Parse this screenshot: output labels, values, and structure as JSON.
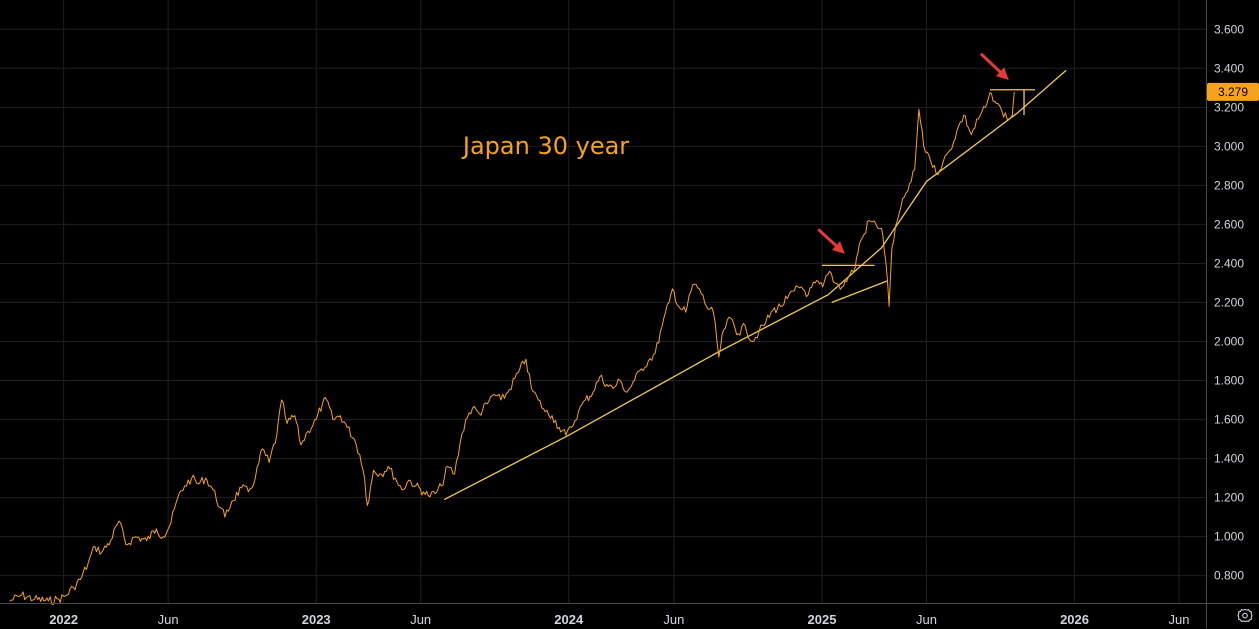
{
  "chart_data": {
    "type": "line",
    "title": "Japan 30 year",
    "colors": {
      "price": "#f7a21b",
      "trendline": "#f2c94c",
      "arrow": "#e53935",
      "grid": "#1f1f1f",
      "axis_border": "#4a4a4a",
      "background": "#000000",
      "price_label_bg": "#f7a21b"
    },
    "ylim": [
      0.66,
      3.75
    ],
    "y_ticks": [
      "0.800",
      "1.000",
      "1.200",
      "1.400",
      "1.600",
      "1.800",
      "2.000",
      "2.200",
      "2.400",
      "2.600",
      "2.800",
      "3.000",
      "3.200",
      "3.400",
      "3.600"
    ],
    "y_tick_values": [
      0.8,
      1.0,
      1.2,
      1.4,
      1.6,
      1.8,
      2.0,
      2.2,
      2.4,
      2.6,
      2.8,
      3.0,
      3.2,
      3.4,
      3.6
    ],
    "xlim": [
      "2021-10-01",
      "2026-07-10"
    ],
    "x_ticks": [
      {
        "date": "2022-01-01",
        "label": "2022",
        "bold": true
      },
      {
        "date": "2022-06-01",
        "label": "Jun",
        "bold": false
      },
      {
        "date": "2023-01-01",
        "label": "2023",
        "bold": true
      },
      {
        "date": "2023-06-01",
        "label": "Jun",
        "bold": false
      },
      {
        "date": "2024-01-01",
        "label": "2024",
        "bold": true
      },
      {
        "date": "2024-06-01",
        "label": "Jun",
        "bold": false
      },
      {
        "date": "2025-01-01",
        "label": "2025",
        "bold": true
      },
      {
        "date": "2025-06-01",
        "label": "Jun",
        "bold": false
      },
      {
        "date": "2026-01-01",
        "label": "2026",
        "bold": true
      },
      {
        "date": "2026-06-01",
        "label": "Jun",
        "bold": false
      }
    ],
    "current_price_label": "3.279",
    "current_price_value": 3.279,
    "series": [
      {
        "name": "Japan 30Y yield",
        "points": [
          [
            "2021-10-15",
            0.67
          ],
          [
            "2021-11-01",
            0.7
          ],
          [
            "2021-11-20",
            0.68
          ],
          [
            "2021-12-10",
            0.67
          ],
          [
            "2021-12-25",
            0.68
          ],
          [
            "2022-01-05",
            0.7
          ],
          [
            "2022-01-15",
            0.74
          ],
          [
            "2022-01-25",
            0.78
          ],
          [
            "2022-02-05",
            0.86
          ],
          [
            "2022-02-15",
            0.95
          ],
          [
            "2022-02-25",
            0.92
          ],
          [
            "2022-03-10",
            0.98
          ],
          [
            "2022-03-22",
            1.08
          ],
          [
            "2022-04-01",
            0.96
          ],
          [
            "2022-04-15",
            1.0
          ],
          [
            "2022-05-01",
            0.98
          ],
          [
            "2022-05-15",
            1.04
          ],
          [
            "2022-05-25",
            1.0
          ],
          [
            "2022-06-05",
            1.07
          ],
          [
            "2022-06-15",
            1.2
          ],
          [
            "2022-06-25",
            1.26
          ],
          [
            "2022-07-05",
            1.3
          ],
          [
            "2022-07-15",
            1.27
          ],
          [
            "2022-07-25",
            1.3
          ],
          [
            "2022-08-05",
            1.24
          ],
          [
            "2022-08-15",
            1.15
          ],
          [
            "2022-08-22",
            1.1
          ],
          [
            "2022-09-01",
            1.18
          ],
          [
            "2022-09-15",
            1.25
          ],
          [
            "2022-09-25",
            1.23
          ],
          [
            "2022-10-05",
            1.3
          ],
          [
            "2022-10-15",
            1.45
          ],
          [
            "2022-10-25",
            1.38
          ],
          [
            "2022-11-05",
            1.52
          ],
          [
            "2022-11-12",
            1.7
          ],
          [
            "2022-11-20",
            1.58
          ],
          [
            "2022-12-01",
            1.62
          ],
          [
            "2022-12-10",
            1.47
          ],
          [
            "2022-12-20",
            1.54
          ],
          [
            "2023-01-01",
            1.6
          ],
          [
            "2023-01-10",
            1.68
          ],
          [
            "2023-01-16",
            1.7
          ],
          [
            "2023-01-25",
            1.6
          ],
          [
            "2023-02-05",
            1.62
          ],
          [
            "2023-02-15",
            1.56
          ],
          [
            "2023-02-25",
            1.5
          ],
          [
            "2023-03-05",
            1.42
          ],
          [
            "2023-03-12",
            1.3
          ],
          [
            "2023-03-16",
            1.16
          ],
          [
            "2023-03-25",
            1.34
          ],
          [
            "2023-04-05",
            1.32
          ],
          [
            "2023-04-15",
            1.36
          ],
          [
            "2023-04-25",
            1.3
          ],
          [
            "2023-05-05",
            1.24
          ],
          [
            "2023-05-15",
            1.29
          ],
          [
            "2023-05-25",
            1.26
          ],
          [
            "2023-06-05",
            1.23
          ],
          [
            "2023-06-12",
            1.21
          ],
          [
            "2023-06-22",
            1.22
          ],
          [
            "2023-07-01",
            1.26
          ],
          [
            "2023-07-10",
            1.36
          ],
          [
            "2023-07-20",
            1.32
          ],
          [
            "2023-07-28",
            1.48
          ],
          [
            "2023-08-05",
            1.6
          ],
          [
            "2023-08-15",
            1.66
          ],
          [
            "2023-08-25",
            1.63
          ],
          [
            "2023-09-05",
            1.68
          ],
          [
            "2023-09-15",
            1.73
          ],
          [
            "2023-09-25",
            1.7
          ],
          [
            "2023-10-05",
            1.74
          ],
          [
            "2023-10-20",
            1.84
          ],
          [
            "2023-10-31",
            1.91
          ],
          [
            "2023-11-08",
            1.76
          ],
          [
            "2023-11-18",
            1.7
          ],
          [
            "2023-11-28",
            1.64
          ],
          [
            "2023-12-08",
            1.62
          ],
          [
            "2023-12-18",
            1.56
          ],
          [
            "2023-12-28",
            1.52
          ],
          [
            "2024-01-05",
            1.56
          ],
          [
            "2024-01-15",
            1.64
          ],
          [
            "2024-01-25",
            1.7
          ],
          [
            "2024-02-05",
            1.74
          ],
          [
            "2024-02-15",
            1.82
          ],
          [
            "2024-02-25",
            1.78
          ],
          [
            "2024-03-05",
            1.76
          ],
          [
            "2024-03-15",
            1.8
          ],
          [
            "2024-03-25",
            1.74
          ],
          [
            "2024-04-05",
            1.8
          ],
          [
            "2024-04-15",
            1.86
          ],
          [
            "2024-04-25",
            1.9
          ],
          [
            "2024-05-05",
            1.94
          ],
          [
            "2024-05-15",
            2.08
          ],
          [
            "2024-05-25",
            2.2
          ],
          [
            "2024-05-30",
            2.27
          ],
          [
            "2024-06-08",
            2.18
          ],
          [
            "2024-06-18",
            2.15
          ],
          [
            "2024-06-28",
            2.29
          ],
          [
            "2024-07-08",
            2.27
          ],
          [
            "2024-07-18",
            2.18
          ],
          [
            "2024-07-28",
            2.15
          ],
          [
            "2024-08-05",
            1.92
          ],
          [
            "2024-08-12",
            2.06
          ],
          [
            "2024-08-22",
            2.12
          ],
          [
            "2024-09-02",
            2.04
          ],
          [
            "2024-09-12",
            2.08
          ],
          [
            "2024-09-22",
            2.0
          ],
          [
            "2024-10-02",
            2.05
          ],
          [
            "2024-10-12",
            2.1
          ],
          [
            "2024-10-22",
            2.16
          ],
          [
            "2024-11-02",
            2.18
          ],
          [
            "2024-11-12",
            2.22
          ],
          [
            "2024-11-22",
            2.26
          ],
          [
            "2024-12-02",
            2.28
          ],
          [
            "2024-12-12",
            2.24
          ],
          [
            "2024-12-22",
            2.3
          ],
          [
            "2025-01-02",
            2.28
          ],
          [
            "2025-01-12",
            2.36
          ],
          [
            "2025-01-20",
            2.3
          ],
          [
            "2025-01-30",
            2.28
          ],
          [
            "2025-02-08",
            2.33
          ],
          [
            "2025-02-18",
            2.38
          ],
          [
            "2025-02-24",
            2.5
          ],
          [
            "2025-03-03",
            2.55
          ],
          [
            "2025-03-10",
            2.62
          ],
          [
            "2025-03-20",
            2.6
          ],
          [
            "2025-03-28",
            2.58
          ],
          [
            "2025-04-03",
            2.42
          ],
          [
            "2025-04-08",
            2.18
          ],
          [
            "2025-04-12",
            2.48
          ],
          [
            "2025-04-20",
            2.62
          ],
          [
            "2025-04-30",
            2.74
          ],
          [
            "2025-05-10",
            2.82
          ],
          [
            "2025-05-15",
            2.88
          ],
          [
            "2025-05-21",
            3.19
          ],
          [
            "2025-05-28",
            3.0
          ],
          [
            "2025-06-05",
            2.95
          ],
          [
            "2025-06-15",
            2.86
          ],
          [
            "2025-06-25",
            2.92
          ],
          [
            "2025-07-05",
            2.98
          ],
          [
            "2025-07-15",
            3.08
          ],
          [
            "2025-07-25",
            3.16
          ],
          [
            "2025-08-05",
            3.06
          ],
          [
            "2025-08-15",
            3.14
          ],
          [
            "2025-08-25",
            3.2
          ],
          [
            "2025-09-03",
            3.27
          ],
          [
            "2025-09-10",
            3.22
          ],
          [
            "2025-09-18",
            3.18
          ],
          [
            "2025-09-28",
            3.14
          ],
          [
            "2025-10-03",
            3.16
          ],
          [
            "2025-10-06",
            3.279
          ]
        ]
      }
    ],
    "annotations": {
      "text": "Japan 30 year",
      "text_anchor": [
        "2023-08-01",
        2.96
      ],
      "trendline": [
        [
          "2023-07-05",
          1.19
        ],
        [
          "2024-01-01",
          1.52
        ],
        [
          "2024-08-01",
          1.94
        ],
        [
          "2025-01-10",
          2.24
        ],
        [
          "2025-03-28",
          2.48
        ],
        [
          "2025-06-01",
          2.82
        ],
        [
          "2025-10-10",
          3.17
        ],
        [
          "2025-12-20",
          3.39
        ]
      ],
      "lower_trend_segment": [
        [
          "2025-01-15",
          2.2
        ],
        [
          "2025-04-05",
          2.31
        ]
      ],
      "horizontal_levels": [
        {
          "from": "2025-01-01",
          "to": "2025-03-18",
          "value": 2.39
        },
        {
          "from": "2025-09-01",
          "to": "2025-11-05",
          "value": 3.29
        }
      ],
      "arrows": [
        {
          "from": [
            "2024-12-28",
            2.57
          ],
          "to": [
            "2025-02-03",
            2.45
          ]
        },
        {
          "from": [
            "2025-08-20",
            3.47
          ],
          "to": [
            "2025-09-28",
            3.34
          ]
        }
      ]
    }
  },
  "ui": {
    "settings_icon": "gear-icon"
  }
}
